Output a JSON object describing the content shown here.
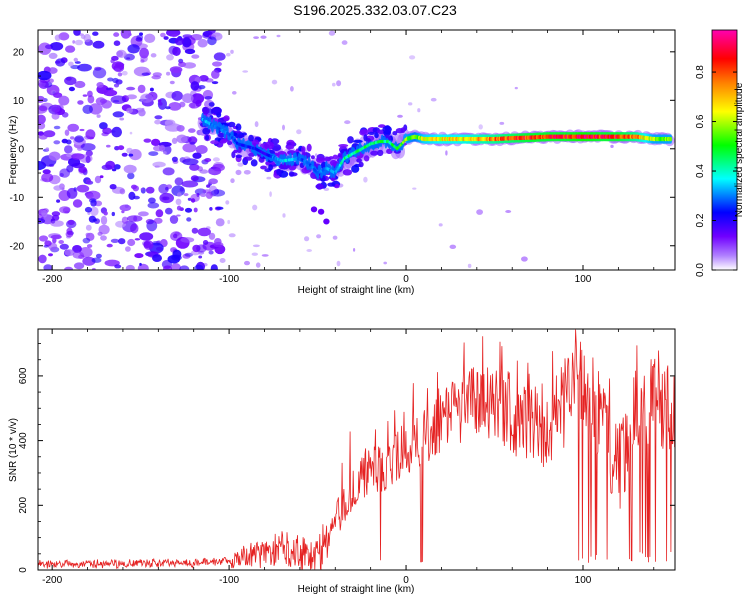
{
  "title": "S196.2025.332.03.07.C23",
  "chart_data": [
    {
      "type": "heatmap",
      "xlabel": "Height of straight line (km)",
      "ylabel": "Frequency (Hz)",
      "xlim": [
        -208,
        152
      ],
      "ylim": [
        -25,
        24.5
      ],
      "xticks": [
        -200,
        -100,
        0,
        100
      ],
      "xtick_labels": [
        "-200",
        "-100",
        "0",
        "100"
      ],
      "yticks": [
        -20,
        -10,
        0,
        10,
        20
      ],
      "ytick_labels": [
        "-20",
        "-10",
        "0",
        "10",
        "20"
      ],
      "colorbar": {
        "label": "Normalized spectral amplitude",
        "range": [
          0,
          0.97
        ],
        "ticks": [
          0,
          0.2,
          0.4,
          0.6,
          0.8
        ],
        "tick_labels": [
          "0.0",
          "0.2",
          "0.4",
          "0.6",
          "0.8"
        ],
        "colormap": [
          "#ffffff",
          "#8000ff",
          "#0000ff",
          "#00ffff",
          "#00ff00",
          "#ffff00",
          "#ff8000",
          "#ff0000",
          "#ff00b0"
        ]
      },
      "ridge": [
        {
          "x": -115,
          "y": 6,
          "amp": 0.35
        },
        {
          "x": -105,
          "y": 4,
          "amp": 0.3
        },
        {
          "x": -100,
          "y": 3,
          "amp": 0.3
        },
        {
          "x": -95,
          "y": 1,
          "amp": 0.25
        },
        {
          "x": -85,
          "y": 0,
          "amp": 0.25
        },
        {
          "x": -80,
          "y": -1,
          "amp": 0.2
        },
        {
          "x": -70,
          "y": -2.5,
          "amp": 0.4
        },
        {
          "x": -60,
          "y": -2,
          "amp": 0.3
        },
        {
          "x": -55,
          "y": -3,
          "amp": 0.3
        },
        {
          "x": -50,
          "y": -5,
          "amp": 0.3
        },
        {
          "x": -45,
          "y": -4,
          "amp": 0.35
        },
        {
          "x": -40,
          "y": -5,
          "amp": 0.35
        },
        {
          "x": -35,
          "y": -2,
          "amp": 0.45
        },
        {
          "x": -30,
          "y": -1,
          "amp": 0.45
        },
        {
          "x": -25,
          "y": 0,
          "amp": 0.5
        },
        {
          "x": -20,
          "y": 1,
          "amp": 0.45
        },
        {
          "x": -15,
          "y": 1.5,
          "amp": 0.5
        },
        {
          "x": -10,
          "y": 1.5,
          "amp": 0.45
        },
        {
          "x": -5,
          "y": 0,
          "amp": 0.5
        },
        {
          "x": 0,
          "y": 2,
          "amp": 0.6
        },
        {
          "x": 5,
          "y": 2.5,
          "amp": 0.55
        },
        {
          "x": 10,
          "y": 2,
          "amp": 0.65
        },
        {
          "x": 20,
          "y": 2,
          "amp": 0.7
        },
        {
          "x": 30,
          "y": 2,
          "amp": 0.7
        },
        {
          "x": 40,
          "y": 2,
          "amp": 0.75
        },
        {
          "x": 50,
          "y": 2,
          "amp": 0.8
        },
        {
          "x": 60,
          "y": 2.2,
          "amp": 0.85
        },
        {
          "x": 70,
          "y": 2.3,
          "amp": 0.9
        },
        {
          "x": 80,
          "y": 2.5,
          "amp": 0.9
        },
        {
          "x": 90,
          "y": 2.5,
          "amp": 0.9
        },
        {
          "x": 100,
          "y": 2.5,
          "amp": 0.95
        },
        {
          "x": 110,
          "y": 2.5,
          "amp": 0.9
        },
        {
          "x": 120,
          "y": 2.5,
          "amp": 0.9
        },
        {
          "x": 130,
          "y": 2.5,
          "amp": 0.8
        },
        {
          "x": 140,
          "y": 2,
          "amp": 0.6
        },
        {
          "x": 150,
          "y": 2,
          "amp": 0.6
        }
      ],
      "noise_region_km": [
        -208,
        -105
      ]
    },
    {
      "type": "line",
      "xlabel": "Height of straight line (km)",
      "ylabel": "SNR (10 * v/v)",
      "xlim": [
        -208,
        152
      ],
      "ylim": [
        0,
        745
      ],
      "xticks": [
        -200,
        -100,
        0,
        100
      ],
      "xtick_labels": [
        "-200",
        "-100",
        "0",
        "100"
      ],
      "yticks": [
        0,
        200,
        400,
        600
      ],
      "ytick_labels": [
        "0",
        "200",
        "400",
        "600"
      ],
      "color": "#e52222",
      "series": [
        {
          "name": "SNR",
          "x": [
            -208,
            -180,
            -150,
            -120,
            -100,
            -90,
            -80,
            -70,
            -60,
            -50,
            -40,
            -30,
            -20,
            -10,
            0,
            10,
            20,
            30,
            40,
            50,
            60,
            70,
            80,
            90,
            100,
            110,
            120,
            130,
            140,
            150
          ],
          "y": [
            18,
            18,
            20,
            22,
            30,
            45,
            50,
            70,
            60,
            40,
            150,
            250,
            310,
            320,
            380,
            410,
            470,
            500,
            530,
            520,
            490,
            430,
            440,
            520,
            560,
            470,
            300,
            500,
            520,
            510
          ]
        }
      ]
    }
  ]
}
